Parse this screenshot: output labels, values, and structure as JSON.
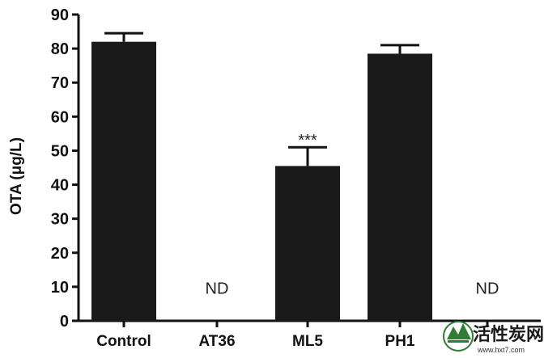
{
  "chart_data": {
    "type": "bar",
    "categories": [
      "Control",
      "AT36",
      "ML5",
      "PH1",
      ""
    ],
    "values": [
      82,
      0,
      45.5,
      78.5,
      0
    ],
    "errors": [
      2.5,
      0,
      5.5,
      2.5,
      0
    ],
    "bar_color": "#1a1a1a",
    "title": "",
    "xlabel": "",
    "ylabel": "OTA (μg/L)",
    "ylim": [
      0,
      90
    ],
    "yticks": [
      0,
      10,
      20,
      30,
      40,
      50,
      60,
      70,
      80,
      90
    ],
    "annotations": [
      {
        "category_index": 1,
        "text": "ND"
      },
      {
        "category_index": 2,
        "text": "***"
      },
      {
        "category_index": 4,
        "text": "ND"
      }
    ],
    "grid": false
  },
  "watermark": {
    "text": "活性炭网",
    "url": "www.hxt7.com"
  }
}
